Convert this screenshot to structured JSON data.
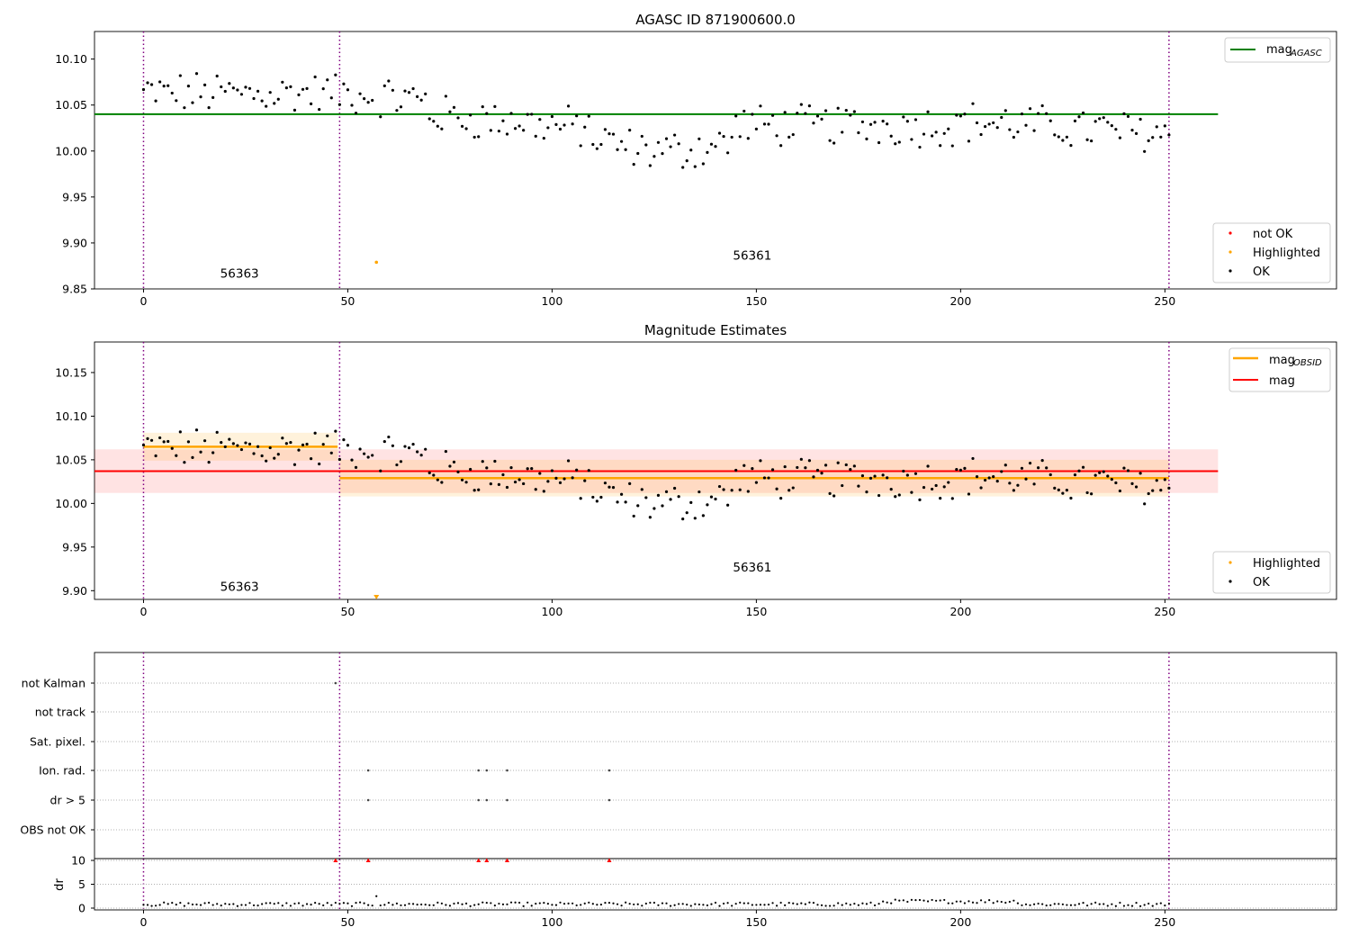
{
  "chart_data": [
    {
      "type": "scatter",
      "title": "AGASC ID 871900600.0",
      "xlim": [
        -12,
        292
      ],
      "ylim": [
        9.85,
        10.13
      ],
      "x_ticks": [
        0,
        50,
        100,
        150,
        200,
        250
      ],
      "x_tick_labels": [
        "0",
        "50",
        "100",
        "150",
        "200",
        "250"
      ],
      "y_ticks": [
        9.85,
        9.9,
        9.95,
        10.0,
        10.05,
        10.1
      ],
      "y_tick_labels": [
        "9.85",
        "9.90",
        "9.95",
        "10.00",
        "10.05",
        "10.10"
      ],
      "obsid_boundaries": [
        0,
        48,
        251
      ],
      "obsid_labels": [
        {
          "text": "56363",
          "x": 23.5,
          "y": 9.862
        },
        {
          "text": "56361",
          "x": 149,
          "y": 9.882
        }
      ],
      "mag_agasc": {
        "label": "mag",
        "subscript": "AGASC",
        "value": 10.04,
        "x_range": [
          -12,
          263
        ],
        "color": "#008000"
      },
      "legend_top": "top-right",
      "legend_bottom": [
        {
          "label": "not OK",
          "color": "#ff0000"
        },
        {
          "label": "Highlighted",
          "color": "#ffa500"
        },
        {
          "label": "OK",
          "color": "#000000"
        }
      ],
      "highlighted_points": [
        [
          57,
          9.879
        ]
      ]
    },
    {
      "type": "scatter",
      "title": "Magnitude Estimates",
      "xlim": [
        -12,
        292
      ],
      "ylim": [
        9.89,
        10.185
      ],
      "x_ticks": [
        0,
        50,
        100,
        150,
        200,
        250
      ],
      "x_tick_labels": [
        "0",
        "50",
        "100",
        "150",
        "200",
        "250"
      ],
      "y_ticks": [
        9.9,
        9.95,
        10.0,
        10.05,
        10.1,
        10.15
      ],
      "y_tick_labels": [
        "9.90",
        "9.95",
        "10.00",
        "10.05",
        "10.10",
        "10.15"
      ],
      "obsid_boundaries": [
        0,
        48,
        251
      ],
      "obsid_labels": [
        {
          "text": "56363",
          "x": 23.5,
          "y": 9.9
        },
        {
          "text": "56361",
          "x": 149,
          "y": 9.922
        }
      ],
      "mag": {
        "label": "mag",
        "value": 10.037,
        "band": [
          10.012,
          10.062
        ],
        "x_range": [
          -12,
          263
        ],
        "color": "#ff0000"
      },
      "mag_obsid": {
        "label": "mag",
        "subscript": "OBSID",
        "color": "#ffa500",
        "segments": [
          {
            "x_range": [
              0,
              47.5
            ],
            "value": 10.065,
            "band": [
              10.049,
              10.081
            ]
          },
          {
            "x_range": [
              48,
              251
            ],
            "value": 10.029,
            "band": [
              10.008,
              10.05
            ]
          }
        ]
      },
      "legend_top": "top-right",
      "legend_bottom": [
        {
          "label": "Highlighted",
          "color": "#ffa500"
        },
        {
          "label": "OK",
          "color": "#000000"
        }
      ],
      "highlighted_points": [
        [
          57,
          9.892
        ]
      ]
    },
    {
      "type": "scatter",
      "xlim": [
        -12,
        292
      ],
      "categories": [
        "not Kalman",
        "not track",
        "Sat. pixel.",
        "Ion. rad.",
        "dr > 5",
        "OBS not OK"
      ],
      "flags": {
        "not Kalman": [
          47
        ],
        "not track": [],
        "Sat. pixel.": [],
        "Ion. rad.": [
          55,
          82,
          84,
          89,
          114
        ],
        "dr > 5": [
          55,
          82,
          84,
          89,
          114
        ],
        "OBS not OK": []
      },
      "dr_ylabel": "dr",
      "dr_ylim": [
        0,
        10
      ],
      "dr_ticks": [
        0,
        5,
        10
      ],
      "dr_tick_labels": [
        "0",
        "5",
        "10"
      ],
      "dr_exceed_markers": [
        47,
        55,
        82,
        84,
        89,
        114
      ],
      "x_ticks": [
        0,
        50,
        100,
        150,
        200,
        250
      ],
      "x_tick_labels": [
        "0",
        "50",
        "100",
        "150",
        "200",
        "250"
      ]
    }
  ]
}
